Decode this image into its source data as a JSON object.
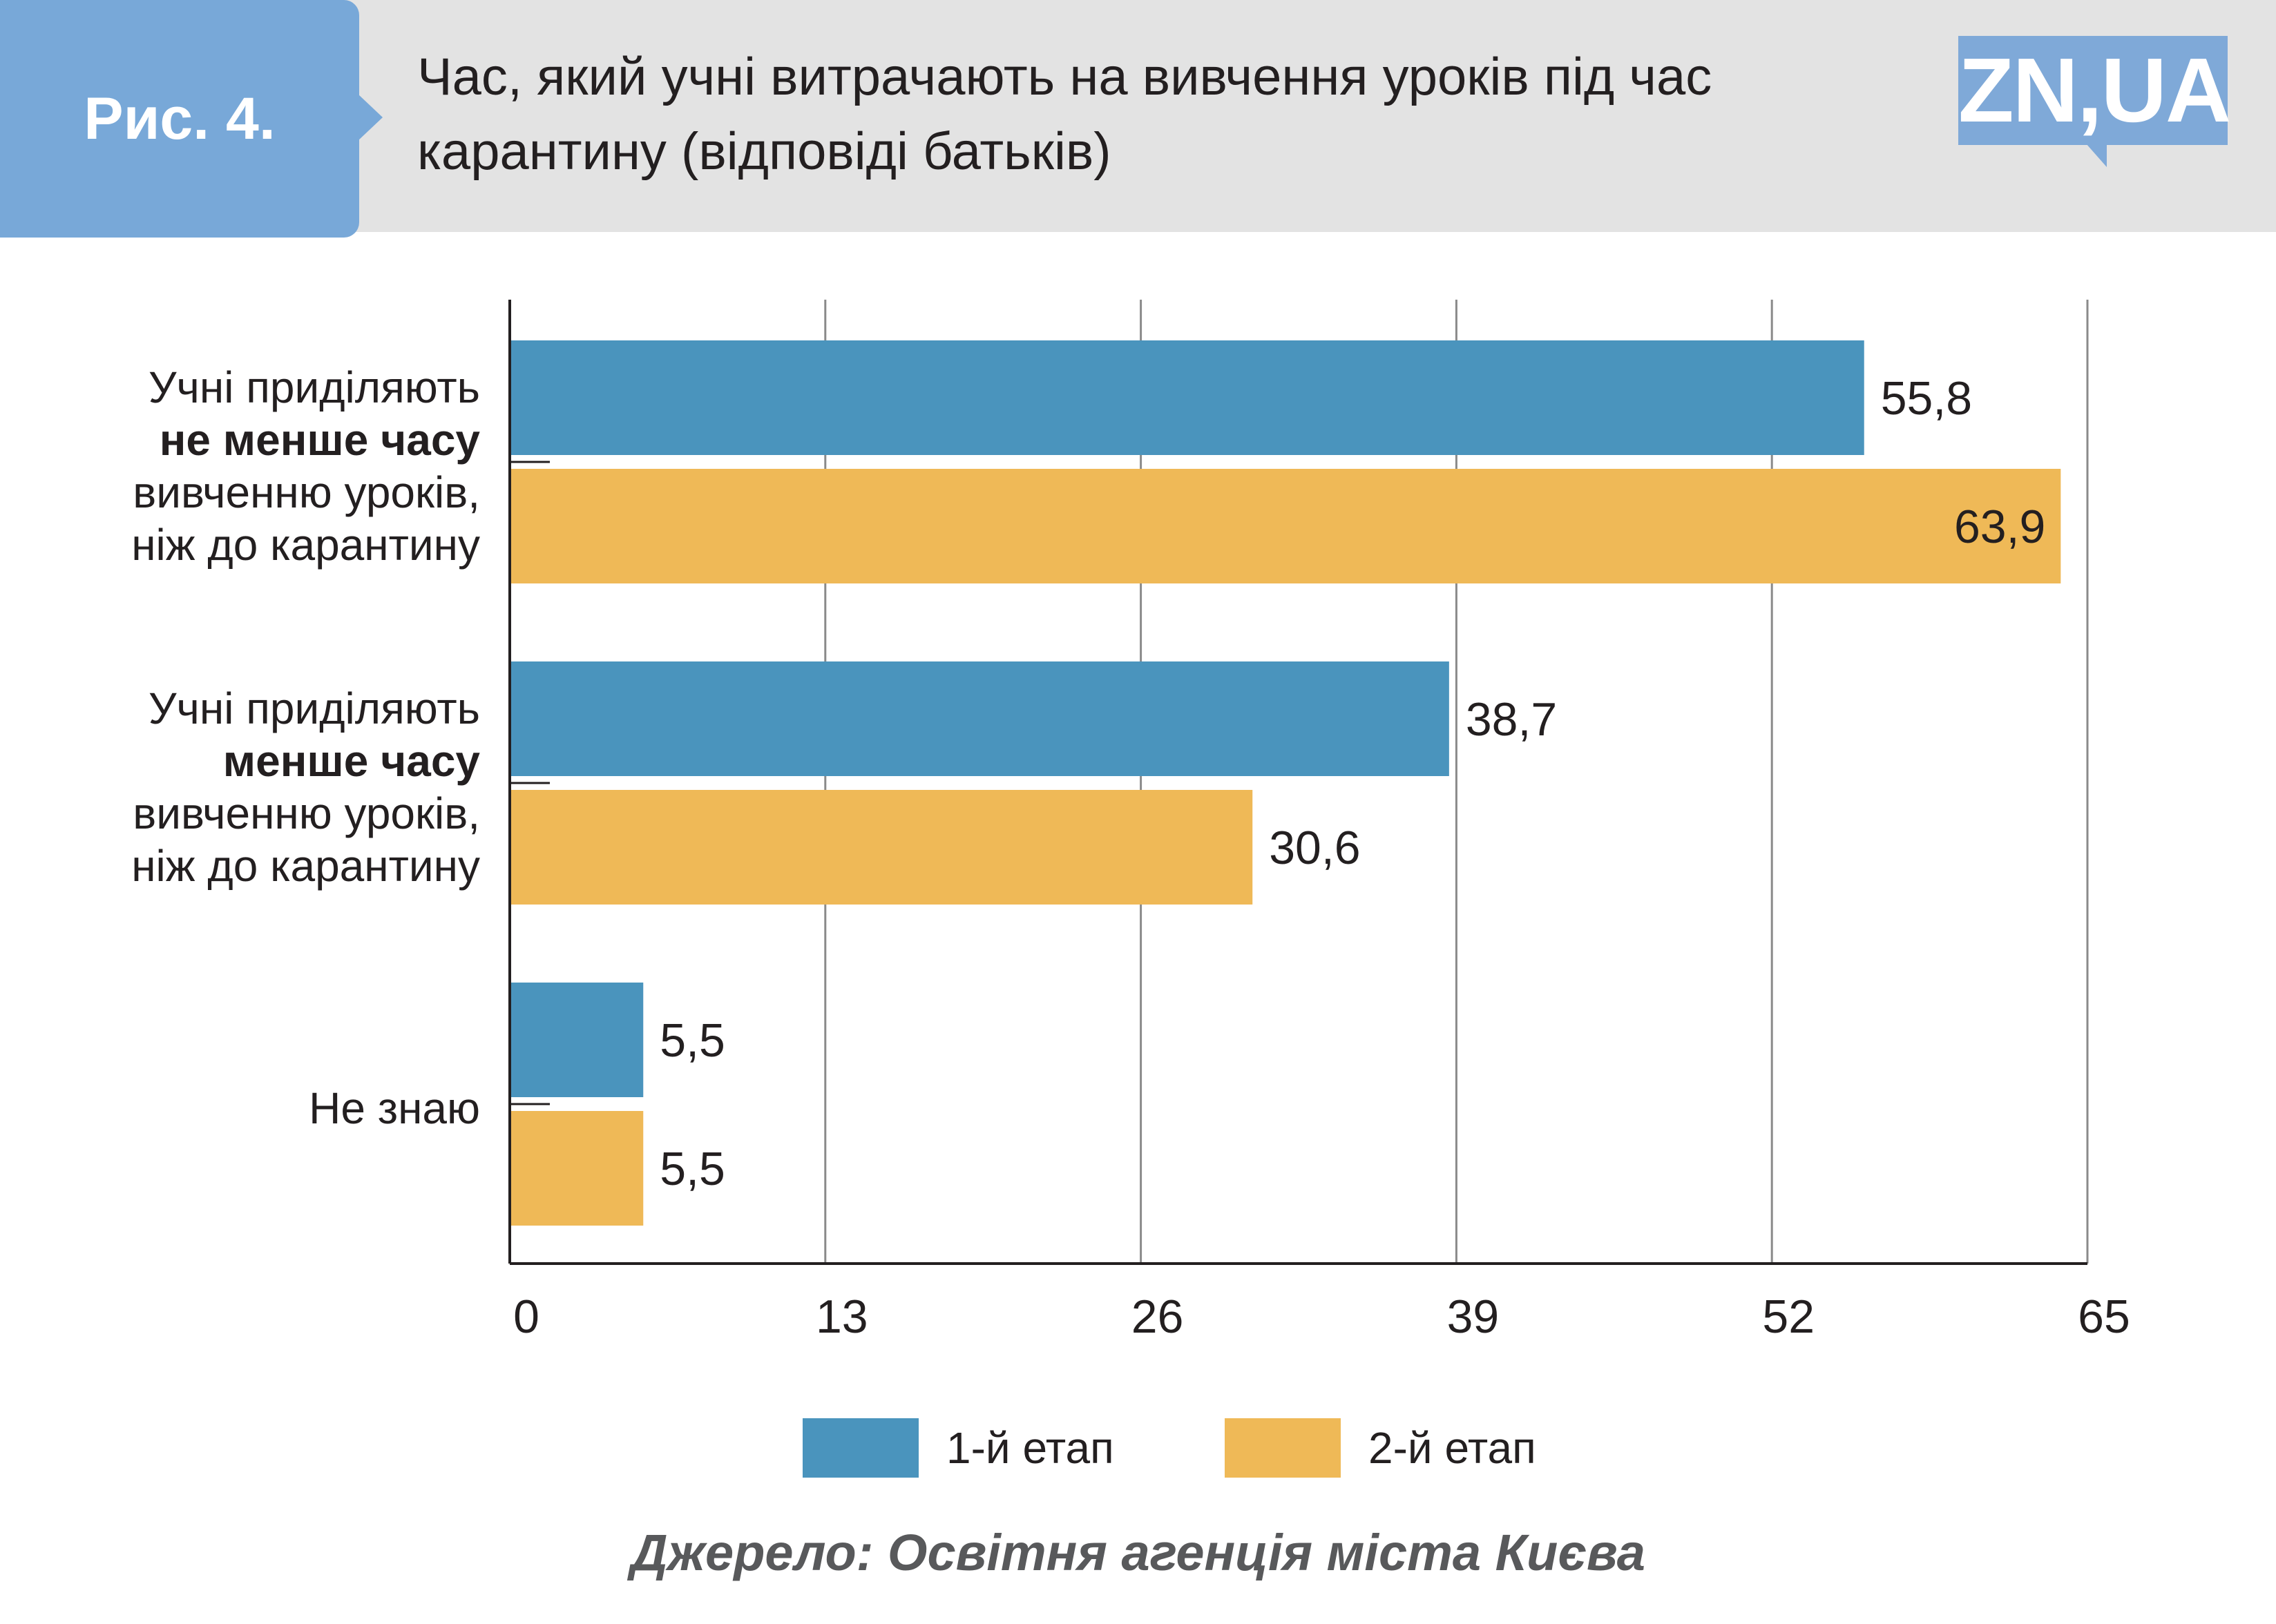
{
  "header": {
    "figure_label": "Рис. 4.",
    "title": "Час, який учні витрачають на вивчення уроків під час карантину (відповіді батьків)",
    "logo": "ZN,UA"
  },
  "chart_data": {
    "type": "bar",
    "orientation": "horizontal",
    "title": "Час, який учні витрачають на вивчення уроків під час карантину (відповіді батьків)",
    "categories": [
      "Учні приділяють не менше часу вивченню уроків, ніж до карантину",
      "Учні приділяють менше часу вивченню уроків, ніж до карантину",
      "Не знаю"
    ],
    "category_lines": [
      [
        {
          "text": "Учні приділяють",
          "bold": false
        },
        {
          "text": "не менше часу",
          "bold": true
        },
        {
          "text": "вивченню уроків,",
          "bold": false
        },
        {
          "text": "ніж до карантину",
          "bold": false
        }
      ],
      [
        {
          "text": "Учні приділяють",
          "bold": false
        },
        {
          "text": "менше часу",
          "bold": true
        },
        {
          "text": "вивченню уроків,",
          "bold": false
        },
        {
          "text": "ніж до карантину",
          "bold": false
        }
      ],
      [
        {
          "text": "Не знаю",
          "bold": false
        }
      ]
    ],
    "series": [
      {
        "name": "1-й етап",
        "color": "#4a94bd",
        "values": [
          55.8,
          38.7,
          5.5
        ],
        "labels": [
          "55,8",
          "38,7",
          "5,5"
        ]
      },
      {
        "name": "2-й етап",
        "color": "#efb957",
        "values": [
          63.9,
          30.6,
          5.5
        ],
        "labels": [
          "63,9",
          "30,6",
          "5,5"
        ]
      }
    ],
    "xlim": [
      0,
      65
    ],
    "x_ticks": [
      "0",
      "13",
      "26",
      "39",
      "52",
      "65"
    ],
    "grid": true,
    "legend_position": "bottom"
  },
  "source": "Джерело: Освітня агенція міста Києва"
}
